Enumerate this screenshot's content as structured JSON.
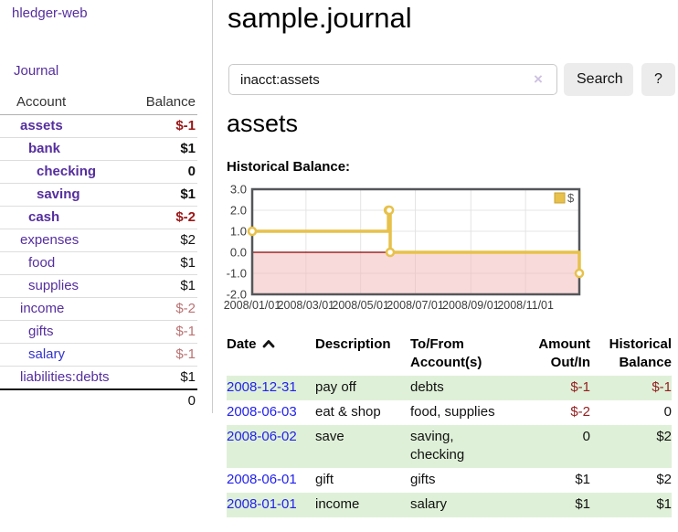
{
  "colors": {
    "link_purple": "#552e9e",
    "link_blue_date": "#2222ee",
    "link_blue_salary": "#3333cc",
    "negative_strong": "#9b1717",
    "negative_soft": "#bb7272",
    "negative_register": "#942020",
    "row_stripe_green": "#dff0d8",
    "series_gold": "#e7c14b",
    "negative_zone_pink": "#f2b6b6",
    "zero_line_red": "#8b0000",
    "button_gray": "#ececec"
  },
  "sidebar": {
    "app_title": "hledger-web",
    "journal_link": "Journal",
    "accounts_table": {
      "headers": {
        "account": "Account",
        "balance": "Balance"
      },
      "rows": [
        {
          "name": "assets",
          "balance": "$-1",
          "depth": 0
        },
        {
          "name": "bank",
          "balance": "$1",
          "depth": 1
        },
        {
          "name": "checking",
          "balance": "0",
          "depth": 2
        },
        {
          "name": "saving",
          "balance": "$1",
          "depth": 2
        },
        {
          "name": "cash",
          "balance": "$-2",
          "depth": 1
        },
        {
          "name": "expenses",
          "balance": "$2",
          "depth": 0
        },
        {
          "name": "food",
          "balance": "$1",
          "depth": 1
        },
        {
          "name": "supplies",
          "balance": "$1",
          "depth": 1
        },
        {
          "name": "income",
          "balance": "$-2",
          "depth": 0
        },
        {
          "name": "gifts",
          "balance": "$-1",
          "depth": 1
        },
        {
          "name": "salary",
          "balance": "$-1",
          "depth": 1
        },
        {
          "name": "liabilities:debts",
          "balance": "$1",
          "depth": 0
        }
      ],
      "total": "0"
    }
  },
  "main": {
    "title": "sample.journal",
    "search": {
      "value": "inacct:assets",
      "clear_icon": "×",
      "search_button": "Search",
      "help_button": "?"
    },
    "account_heading": "assets",
    "chart_heading": "Historical Balance:",
    "register_table": {
      "headers": {
        "date": "Date",
        "description": "Description",
        "accounts": "To/From Account(s)",
        "amount": "Amount Out/In",
        "balance": "Historical Balance"
      },
      "rows": [
        {
          "date": "2008-12-31",
          "description": "pay off",
          "accounts": "debts",
          "amount": "$-1",
          "balance": "$-1"
        },
        {
          "date": "2008-06-03",
          "description": "eat & shop",
          "accounts": "food, supplies",
          "amount": "$-2",
          "balance": "0"
        },
        {
          "date": "2008-06-02",
          "description": "save",
          "accounts": "saving,\nchecking",
          "amount": "0",
          "balance": "$2"
        },
        {
          "date": "2008-06-01",
          "description": "gift",
          "accounts": "gifts",
          "amount": "$1",
          "balance": "$2"
        },
        {
          "date": "2008-01-01",
          "description": "income",
          "accounts": "salary",
          "amount": "$1",
          "balance": "$1"
        }
      ]
    }
  },
  "chart_data": {
    "type": "line",
    "title": "Historical Balance:",
    "line_style": "step-after",
    "series": [
      {
        "name": "$",
        "points": [
          {
            "date": "2008-01-01",
            "value": 1
          },
          {
            "date": "2008-06-01",
            "value": 2
          },
          {
            "date": "2008-06-02",
            "value": 2
          },
          {
            "date": "2008-06-03",
            "value": 0
          },
          {
            "date": "2008-12-31",
            "value": -1
          }
        ]
      }
    ],
    "x_range": [
      "2008-01-01",
      "2008-12-31"
    ],
    "x_ticks": [
      "2008/01/01",
      "2008/03/01",
      "2008/05/01",
      "2008/07/01",
      "2008/09/01",
      "2008/11/01"
    ],
    "y_ticks": [
      3.0,
      2.0,
      1.0,
      0.0,
      -1.0,
      -2.0
    ],
    "ylim": [
      -2,
      3
    ],
    "grid": true,
    "legend": {
      "label": "$",
      "position": "top-right"
    },
    "negative_region_shaded": true
  }
}
